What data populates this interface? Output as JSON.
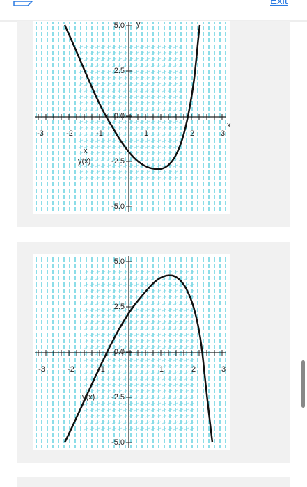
{
  "header": {
    "exit": "Exit"
  },
  "graphs": [
    {
      "y_labels": [
        "5.0",
        "2.5",
        "0.0",
        "-2.5",
        "-5.0"
      ],
      "x_labels": [
        "-3",
        "-2",
        "-1",
        "1",
        "2",
        "3"
      ],
      "x_axis_label": "x",
      "y_axis_label": "y",
      "side_label": "x",
      "curve_label": "y(x)"
    },
    {
      "y_labels": [
        "5.0",
        "2.5",
        "0.0",
        "-2.5",
        "-5.0"
      ],
      "x_labels": [
        "-3",
        "-2",
        "-1",
        "1",
        "2",
        "3"
      ],
      "curve_label": "y(x)"
    }
  ]
}
